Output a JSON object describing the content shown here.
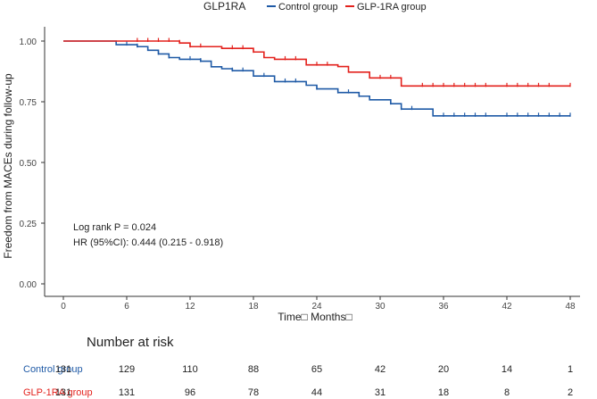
{
  "chart_data": {
    "type": "line",
    "subtype": "kaplan-meier",
    "legend": {
      "title": "GLP1RA",
      "placement": "top",
      "entries": [
        {
          "name": "Control group",
          "color": "#1f5aa6"
        },
        {
          "name": "GLP-1RA group",
          "color": "#e3211c"
        }
      ]
    },
    "xlabel": "Time□ Months□",
    "ylabel": "Freedom from MACEs during  follow-up",
    "xlim": [
      0,
      48
    ],
    "ylim": [
      0,
      1
    ],
    "xticks": [
      0,
      6,
      12,
      18,
      24,
      30,
      36,
      42,
      48
    ],
    "yticks": [
      0.0,
      0.25,
      0.5,
      0.75,
      1.0
    ],
    "ytick_labels": [
      "0.00",
      "0.25",
      "0.50",
      "0.75",
      "1.00"
    ],
    "annotations": [
      "Log rank P = 0.024",
      "HR (95%CI): 0.444 (0.215 - 0.918)"
    ],
    "series": [
      {
        "name": "Control group",
        "color": "#1f5aa6",
        "steps": [
          [
            0,
            1.0
          ],
          [
            5,
            0.985
          ],
          [
            7,
            0.977
          ],
          [
            8,
            0.962
          ],
          [
            9,
            0.947
          ],
          [
            10,
            0.932
          ],
          [
            11,
            0.925
          ],
          [
            13,
            0.917
          ],
          [
            14,
            0.894
          ],
          [
            15,
            0.886
          ],
          [
            16,
            0.878
          ],
          [
            18,
            0.856
          ],
          [
            20,
            0.833
          ],
          [
            23,
            0.818
          ],
          [
            24,
            0.803
          ],
          [
            26,
            0.788
          ],
          [
            28,
            0.773
          ],
          [
            29,
            0.758
          ],
          [
            31,
            0.742
          ],
          [
            32,
            0.72
          ],
          [
            34,
            0.72
          ],
          [
            35,
            0.692
          ],
          [
            48,
            0.692
          ]
        ],
        "censored": [
          6,
          7,
          9,
          10,
          12,
          13,
          16,
          17,
          19,
          21,
          22,
          24,
          26,
          27,
          28,
          31,
          32,
          33,
          36,
          37,
          38,
          39,
          40,
          42,
          43,
          44,
          45,
          46,
          47,
          48
        ]
      },
      {
        "name": "GLP-1RA group",
        "color": "#e3211c",
        "steps": [
          [
            0,
            1.0
          ],
          [
            11,
            0.992
          ],
          [
            12,
            0.977
          ],
          [
            15,
            0.97
          ],
          [
            18,
            0.955
          ],
          [
            19,
            0.932
          ],
          [
            20,
            0.925
          ],
          [
            23,
            0.902
          ],
          [
            26,
            0.895
          ],
          [
            27,
            0.872
          ],
          [
            29,
            0.848
          ],
          [
            32,
            0.815
          ],
          [
            48,
            0.815
          ]
        ],
        "censored": [
          7,
          8,
          9,
          10,
          11,
          12,
          13,
          16,
          17,
          18,
          21,
          22,
          24,
          25,
          30,
          31,
          34,
          35,
          36,
          37,
          38,
          39,
          40,
          42,
          43,
          44,
          45,
          46,
          48
        ]
      }
    ]
  },
  "risk_table": {
    "title": "Number at risk",
    "rows": [
      {
        "label": "Control group",
        "color": "#1f5aa6",
        "values": [
          "131",
          "129",
          "110",
          "88",
          "65",
          "42",
          "20",
          "14",
          "1"
        ]
      },
      {
        "label": "GLP-1RA group",
        "color": "#e3211c",
        "values": [
          "131",
          "131",
          "96",
          "78",
          "44",
          "31",
          "18",
          "8",
          "2"
        ]
      }
    ]
  }
}
